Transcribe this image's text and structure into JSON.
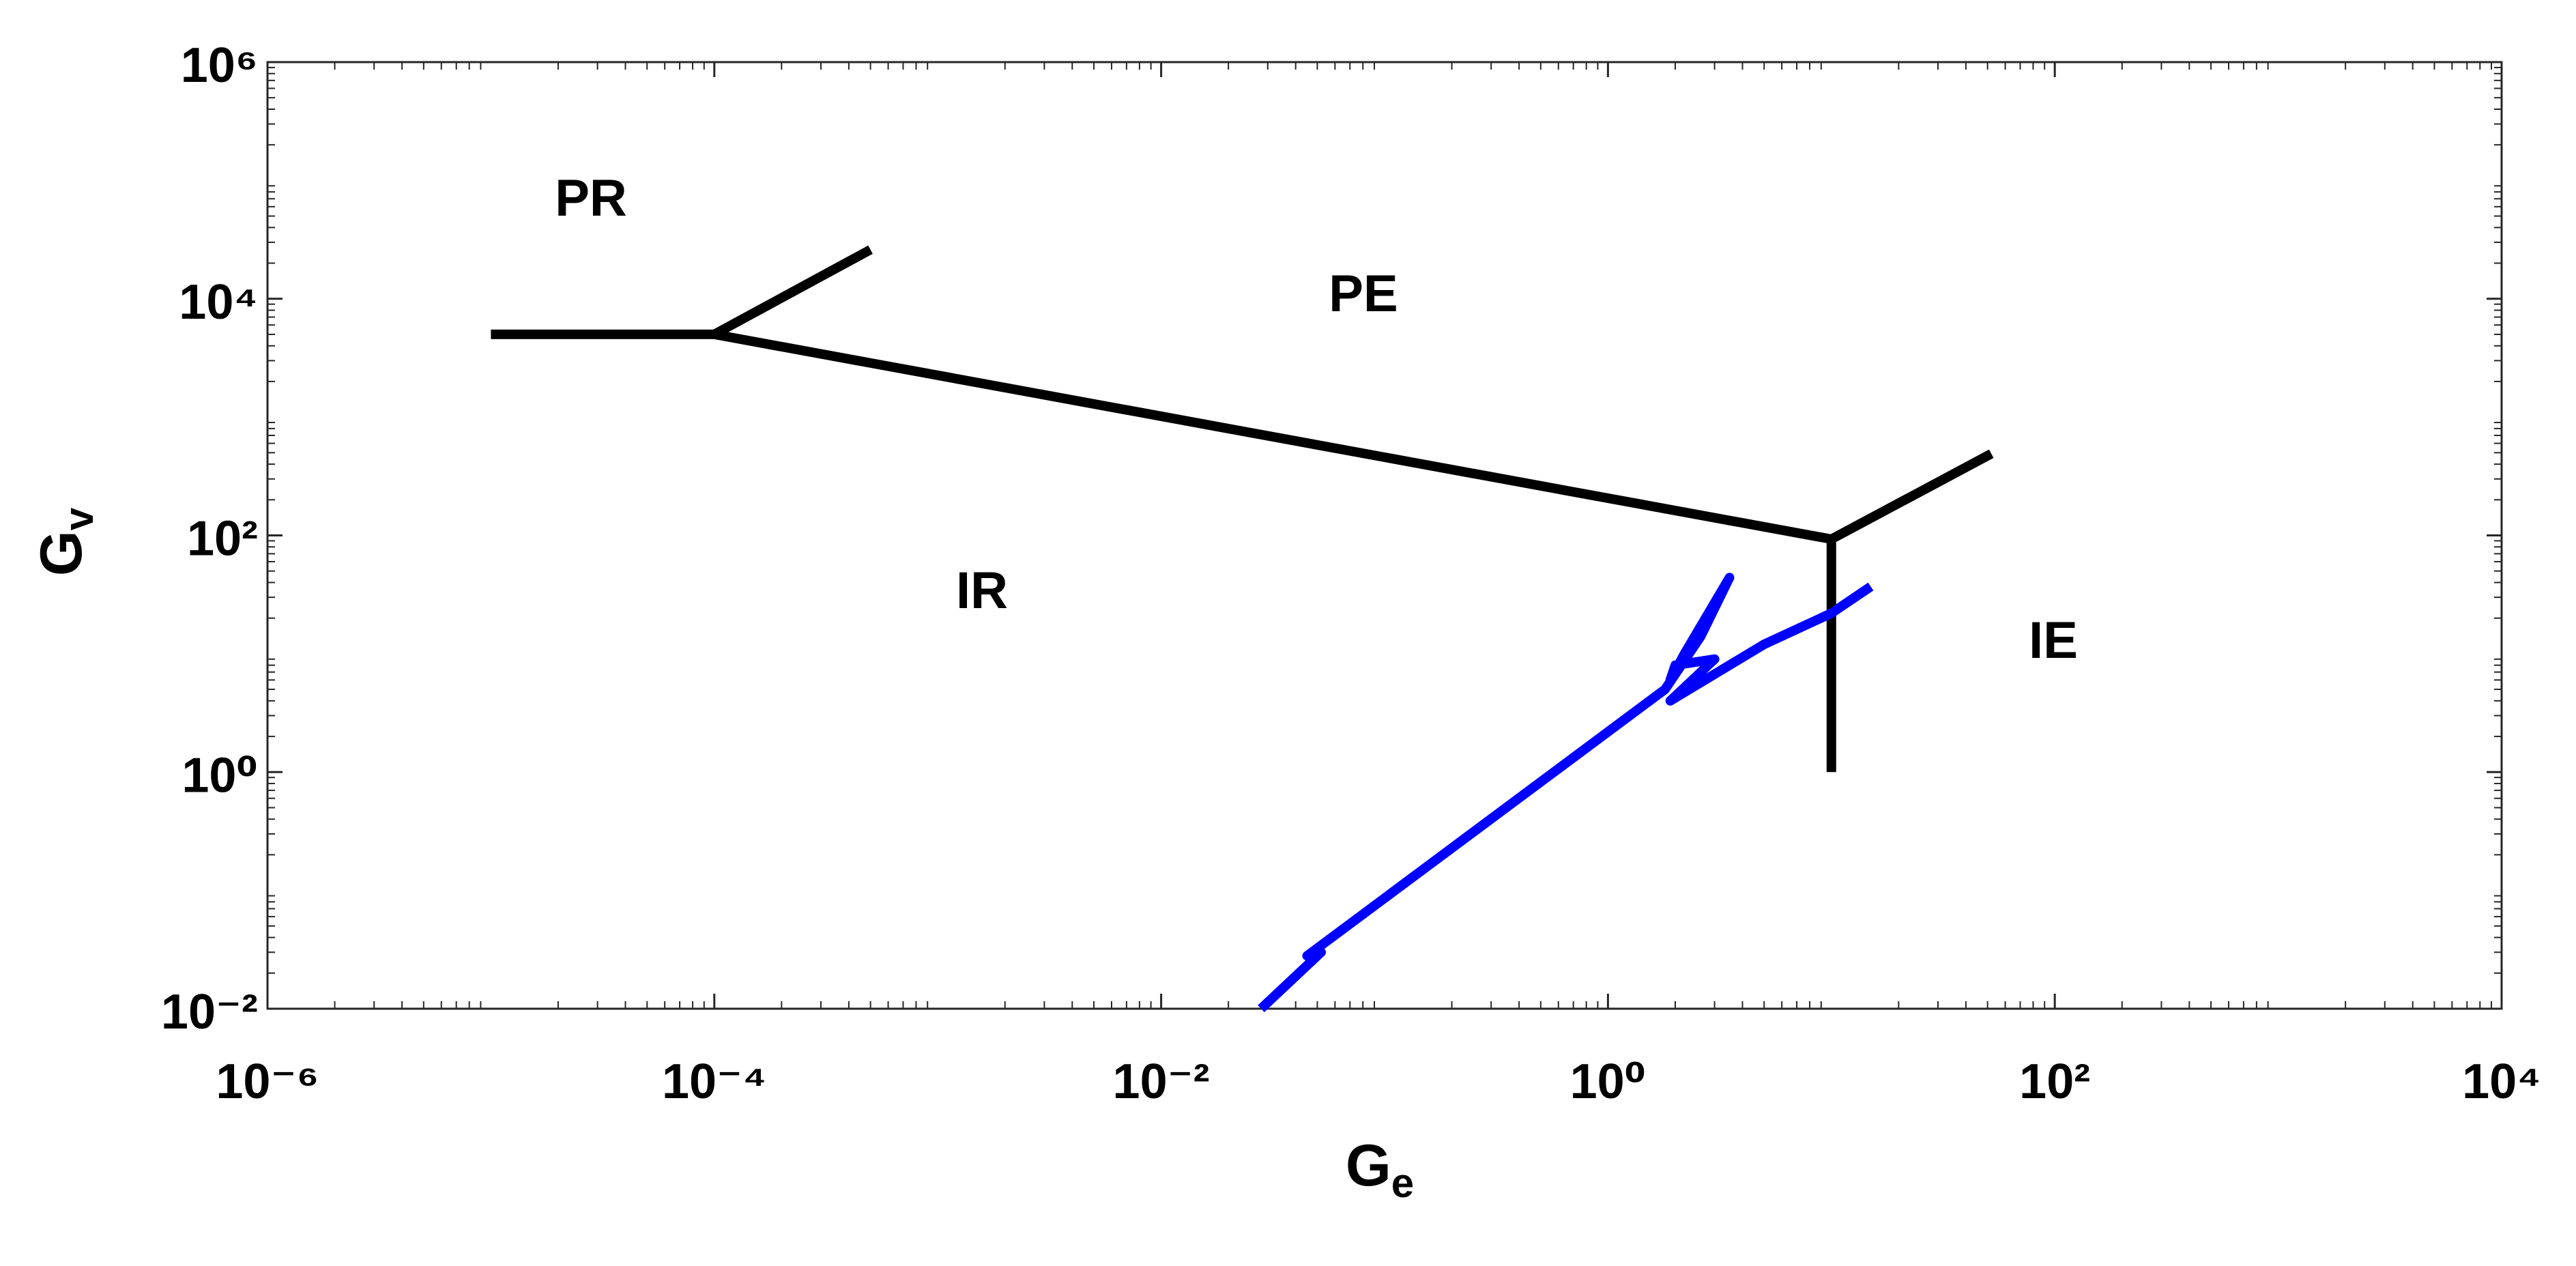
{
  "chart_data": {
    "type": "line",
    "xlabel": {
      "base": "G",
      "subscript": "e"
    },
    "ylabel": {
      "base": "G",
      "subscript": "v"
    },
    "xscale": "log",
    "yscale": "log",
    "xlim": [
      1e-06,
      10000
    ],
    "ylim": [
      0.01,
      1000000
    ],
    "xticks": [
      {
        "value": 1e-06,
        "label": "10⁻⁶"
      },
      {
        "value": 0.0001,
        "label": "10⁻⁴"
      },
      {
        "value": 0.01,
        "label": "10⁻²"
      },
      {
        "value": 1,
        "label": "10⁰"
      },
      {
        "value": 100,
        "label": "10²"
      },
      {
        "value": 10000,
        "label": "10⁴"
      }
    ],
    "yticks": [
      {
        "value": 0.01,
        "label": "10⁻²"
      },
      {
        "value": 1,
        "label": "10⁰"
      },
      {
        "value": 100,
        "label": "10²"
      },
      {
        "value": 10000,
        "label": "10⁴"
      },
      {
        "value": 1000000,
        "label": "10⁶"
      }
    ],
    "annotations": [
      "PR",
      "PE",
      "IR",
      "IE"
    ],
    "series": [
      {
        "color": "#000000",
        "x": [
          1e-05,
          0.0001
        ],
        "y": [
          5000,
          5000
        ]
      },
      {
        "color": "#000000",
        "x": [
          0.0001,
          0.0005
        ],
        "y": [
          5000,
          26000
        ]
      },
      {
        "color": "#000000",
        "x": [
          0.0001,
          10
        ],
        "y": [
          5000,
          93
        ]
      },
      {
        "color": "#000000",
        "x": [
          10,
          52
        ],
        "y": [
          93,
          490
        ]
      },
      {
        "color": "#000000",
        "x": [
          10,
          10
        ],
        "y": [
          93,
          1
        ]
      },
      {
        "color": "#0000ff",
        "x": [
          0.028,
          0.052,
          0.045,
          1.8,
          2.6,
          3.5,
          2.2,
          1.9,
          2.0,
          3.0,
          1.9,
          5,
          10,
          15
        ],
        "y": [
          0.01,
          0.03,
          0.028,
          5,
          14,
          44,
          10,
          6,
          8,
          9,
          4,
          12,
          22,
          37
        ]
      }
    ]
  }
}
